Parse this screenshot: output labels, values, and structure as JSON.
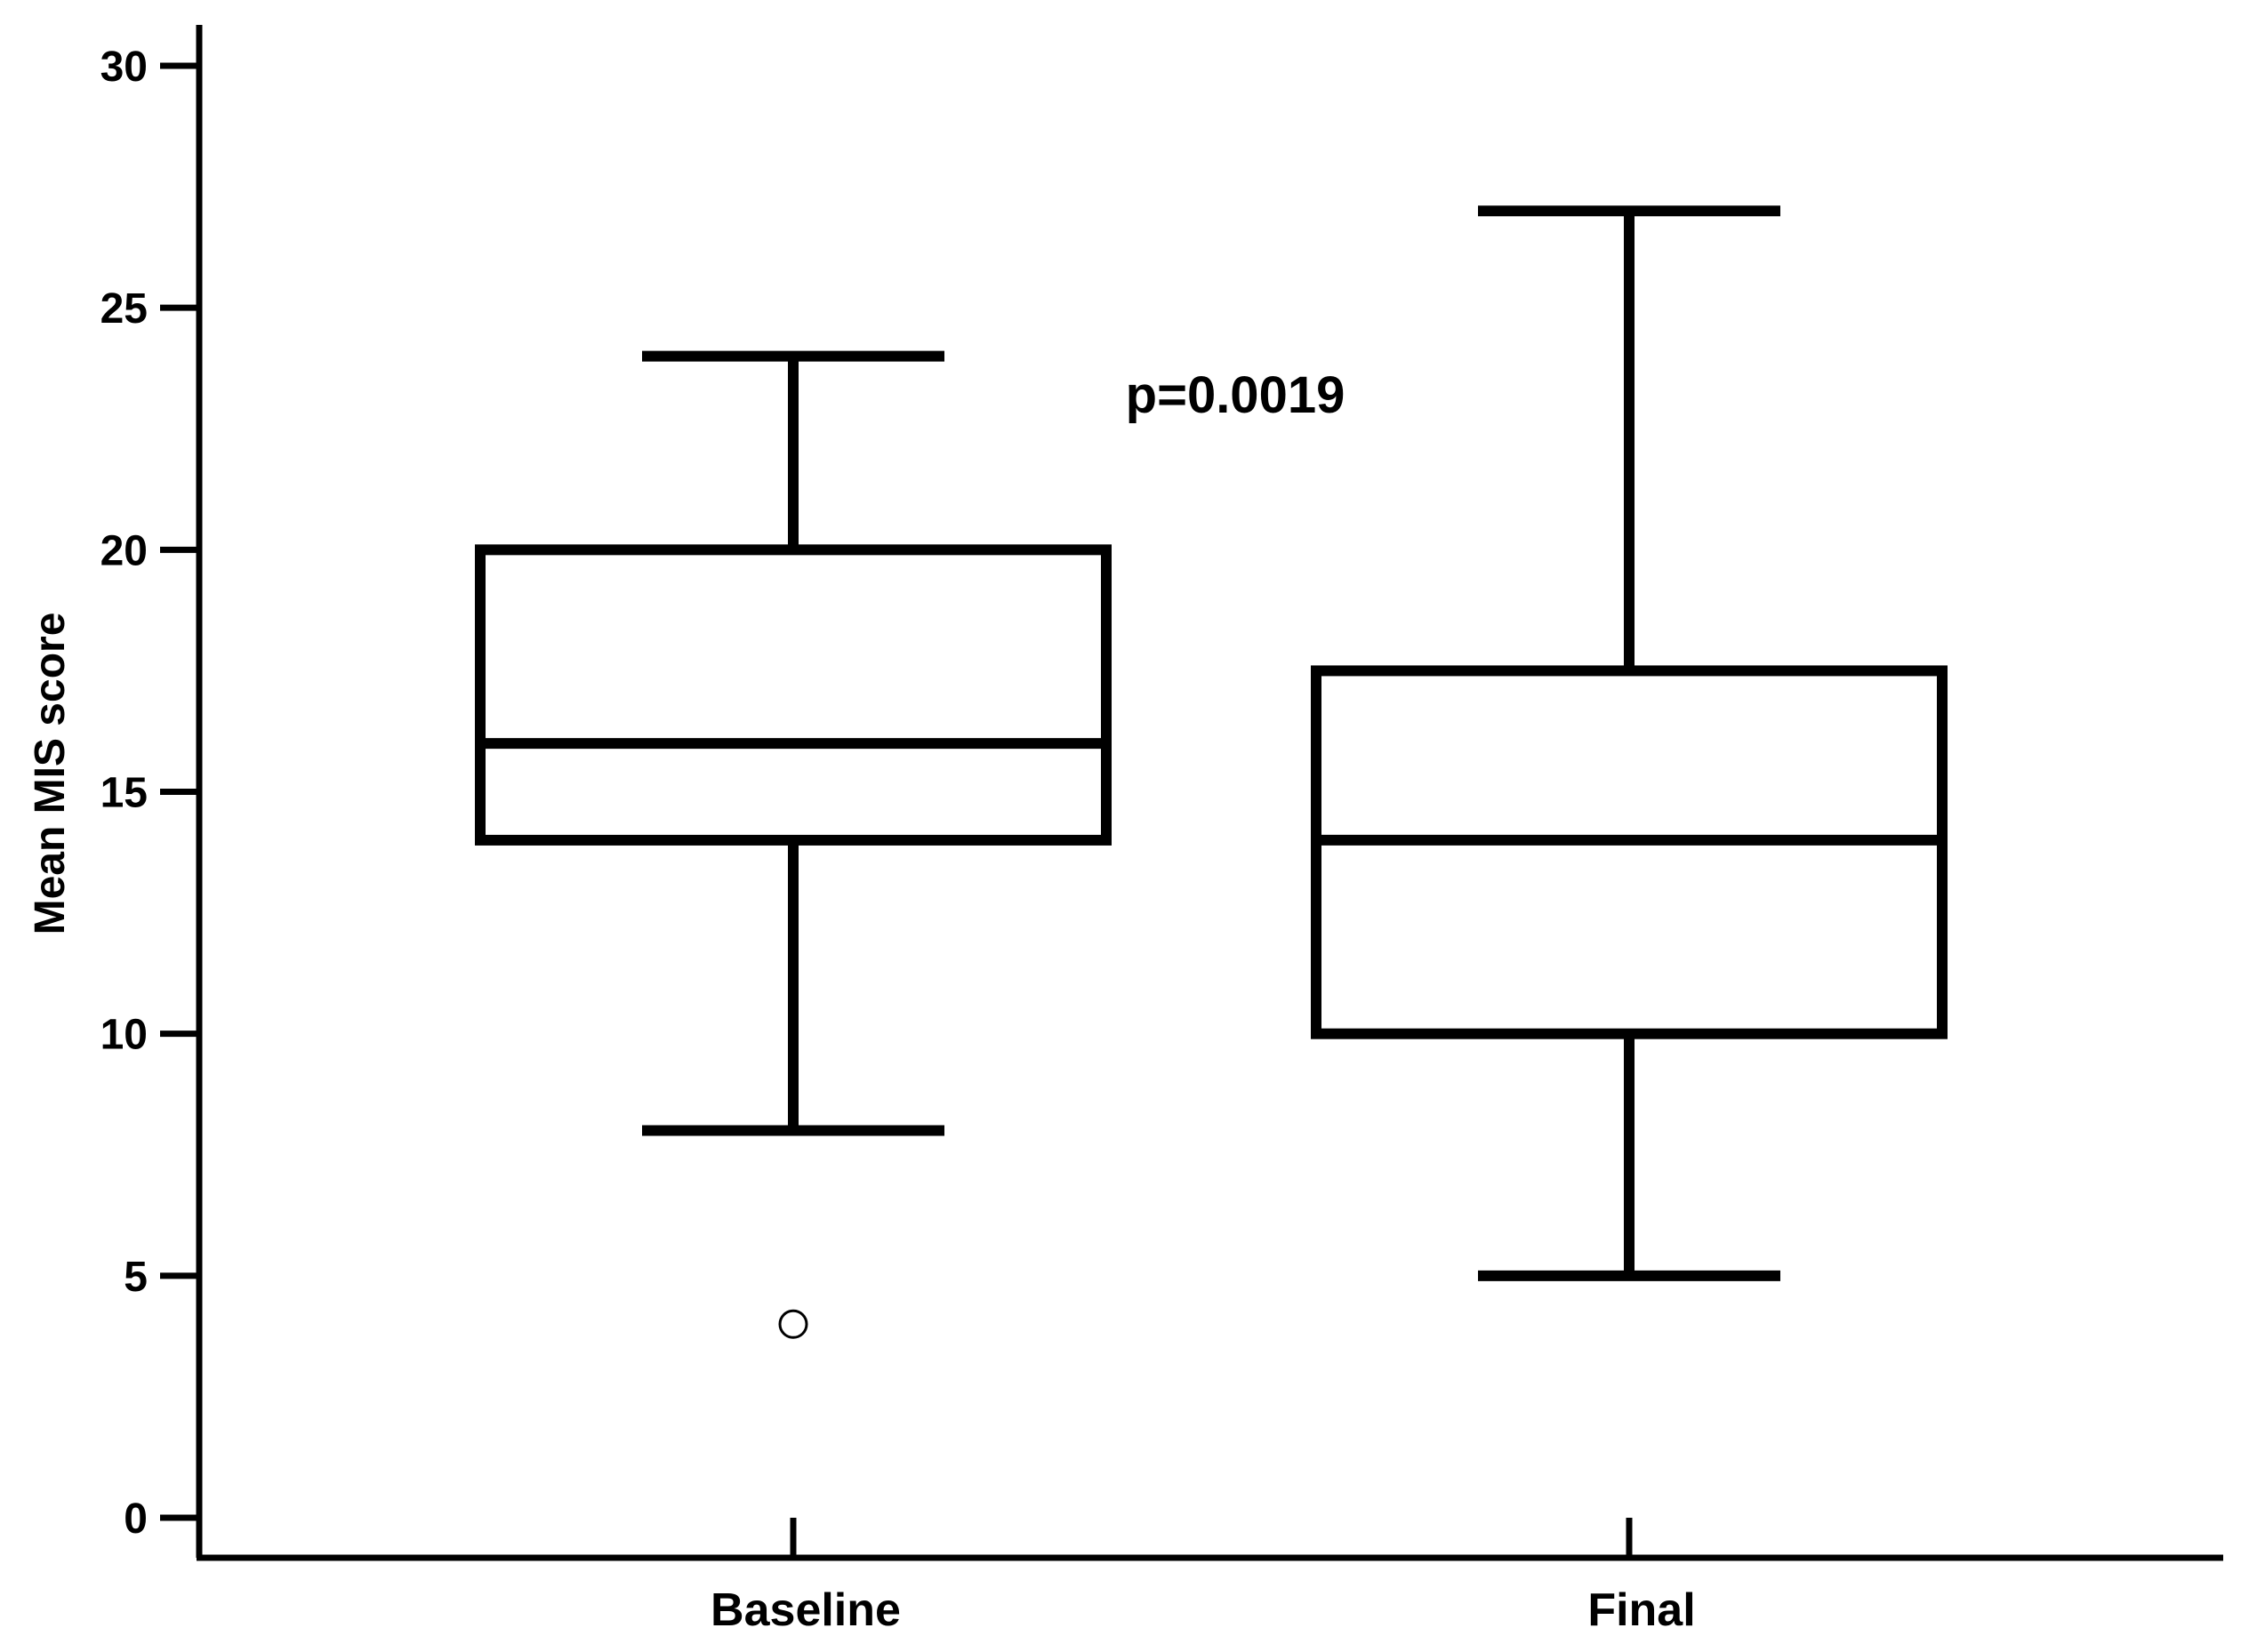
{
  "chart_data": {
    "type": "boxplot",
    "title": "",
    "xlabel": "",
    "ylabel": "Mean MIS score",
    "ylim": [
      0,
      30
    ],
    "yticks": [
      "0",
      "5",
      "10",
      "15",
      "20",
      "25",
      "30"
    ],
    "categories": [
      "Baseline",
      "Final"
    ],
    "boxes": [
      {
        "name": "Baseline",
        "whisker_low": 8,
        "q1": 14,
        "median": 16,
        "q3": 20,
        "whisker_high": 24,
        "outliers": [
          4
        ]
      },
      {
        "name": "Final",
        "whisker_low": 5,
        "q1": 10,
        "median": 14,
        "q3": 17.5,
        "whisker_high": 27,
        "outliers": []
      }
    ],
    "annotations": [
      {
        "text": "p=0.0019",
        "x_between": [
          "Baseline",
          "Final"
        ],
        "y": 23.2
      }
    ],
    "grid": false,
    "legend": "none",
    "colors": {
      "stroke": "#000000",
      "fill": "#ffffff"
    }
  }
}
